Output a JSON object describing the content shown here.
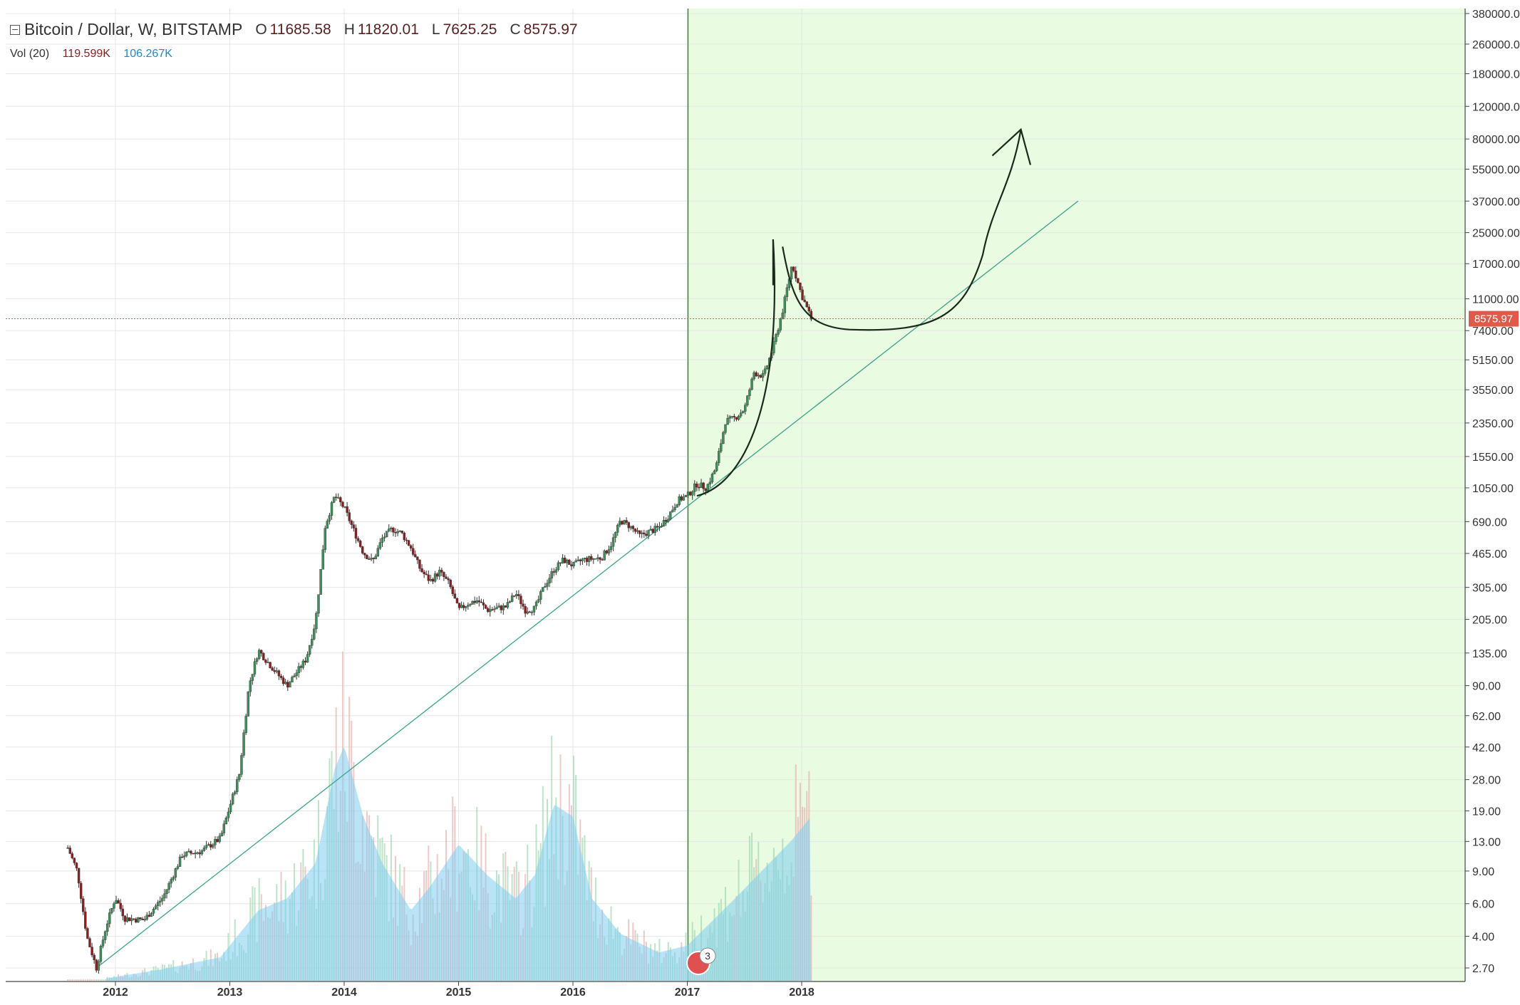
{
  "header": {
    "symbol": "Bitcoin / Dollar, W, BITSTAMP",
    "open_label": "O",
    "open_value": "11685.58",
    "high_label": "H",
    "high_value": "11820.01",
    "low_label": "L",
    "low_value": "7625.25",
    "close_label": "C",
    "close_value": "8575.97"
  },
  "volume_legend": {
    "title": "Vol (20)",
    "value": "119.599K",
    "ma_value": "106.267K"
  },
  "colors": {
    "up": "#3f8f5a",
    "down": "#8b1f1f",
    "highlight_bg": "#e9fbe1",
    "trendline": "#3aa38a",
    "volume_ma_fill": "#80ccf0",
    "price_line": "#e05a4a",
    "drawing": "#1a2a1a"
  },
  "chart_data": {
    "type": "candlestick",
    "title": "Bitcoin / Dollar, W, BITSTAMP",
    "y_scale": "log",
    "y_axis_ticks": [
      "380000.00",
      "260000.00",
      "180000.00",
      "120000.00",
      "80000.00",
      "55000.00",
      "37000.00",
      "25000.00",
      "17000.00",
      "11000.00",
      "7400.00",
      "5150.00",
      "3550.00",
      "2350.00",
      "1550.00",
      "1050.00",
      "690.00",
      "465.00",
      "305.00",
      "205.00",
      "135.00",
      "90.00",
      "62.00",
      "42.00",
      "28.00",
      "19.00",
      "13.00",
      "9.00",
      "6.00",
      "4.00",
      "2.70"
    ],
    "x_axis_ticks": [
      "2012",
      "2013",
      "2014",
      "2015",
      "2016",
      "2017",
      "2018"
    ],
    "last_price": 8575.97,
    "last_price_label": "8575.97",
    "highlight_range": {
      "from": "2017-01",
      "to": "end"
    },
    "event_badge": "3",
    "price_path": [
      [
        "2011-08",
        12
      ],
      [
        "2011-09",
        9
      ],
      [
        "2011-10",
        4
      ],
      [
        "2011-11",
        2.7
      ],
      [
        "2011-12",
        4.5
      ],
      [
        "2012-01",
        6.5
      ],
      [
        "2012-02",
        5
      ],
      [
        "2012-04",
        4.9
      ],
      [
        "2012-06",
        6.5
      ],
      [
        "2012-08",
        11
      ],
      [
        "2012-10",
        11.5
      ],
      [
        "2012-12",
        13.5
      ],
      [
        "2013-02",
        30
      ],
      [
        "2013-03",
        90
      ],
      [
        "2013-04",
        140
      ],
      [
        "2013-05",
        120
      ],
      [
        "2013-07",
        90
      ],
      [
        "2013-09",
        125
      ],
      [
        "2013-10",
        200
      ],
      [
        "2013-11",
        650
      ],
      [
        "2013-12",
        950
      ],
      [
        "2014-01",
        820
      ],
      [
        "2014-02",
        620
      ],
      [
        "2014-03",
        470
      ],
      [
        "2014-04",
        420
      ],
      [
        "2014-05",
        560
      ],
      [
        "2014-06",
        630
      ],
      [
        "2014-07",
        600
      ],
      [
        "2014-08",
        500
      ],
      [
        "2014-09",
        380
      ],
      [
        "2014-10",
        330
      ],
      [
        "2014-11",
        370
      ],
      [
        "2014-12",
        320
      ],
      [
        "2015-01",
        230
      ],
      [
        "2015-02",
        250
      ],
      [
        "2015-03",
        260
      ],
      [
        "2015-04",
        230
      ],
      [
        "2015-05",
        235
      ],
      [
        "2015-06",
        240
      ],
      [
        "2015-07",
        285
      ],
      [
        "2015-08",
        230
      ],
      [
        "2015-09",
        235
      ],
      [
        "2015-10",
        310
      ],
      [
        "2015-11",
        380
      ],
      [
        "2015-12",
        430
      ],
      [
        "2016-01",
        400
      ],
      [
        "2016-02",
        430
      ],
      [
        "2016-04",
        440
      ],
      [
        "2016-05",
        520
      ],
      [
        "2016-06",
        700
      ],
      [
        "2016-07",
        650
      ],
      [
        "2016-08",
        580
      ],
      [
        "2016-10",
        640
      ],
      [
        "2016-11",
        740
      ],
      [
        "2016-12",
        900
      ],
      [
        "2017-01",
        950
      ],
      [
        "2017-02",
        1100
      ],
      [
        "2017-03",
        1050
      ],
      [
        "2017-04",
        1350
      ],
      [
        "2017-05",
        2400
      ],
      [
        "2017-06",
        2500
      ],
      [
        "2017-07",
        2800
      ],
      [
        "2017-08",
        4400
      ],
      [
        "2017-09",
        4200
      ],
      [
        "2017-10",
        6000
      ],
      [
        "2017-11",
        9500
      ],
      [
        "2017-12",
        17000
      ],
      [
        "2018-01",
        11500
      ],
      [
        "2018-02",
        8575.97
      ]
    ],
    "volume_ma_path": [
      [
        "2011-12",
        0.01
      ],
      [
        "2012-06",
        0.05
      ],
      [
        "2012-12",
        0.1
      ],
      [
        "2013-04",
        0.3
      ],
      [
        "2013-07",
        0.35
      ],
      [
        "2013-10",
        0.5
      ],
      [
        "2013-12",
        0.9
      ],
      [
        "2014-01",
        1.0
      ],
      [
        "2014-03",
        0.7
      ],
      [
        "2014-05",
        0.5
      ],
      [
        "2014-08",
        0.3
      ],
      [
        "2014-10",
        0.4
      ],
      [
        "2015-01",
        0.58
      ],
      [
        "2015-04",
        0.45
      ],
      [
        "2015-07",
        0.35
      ],
      [
        "2015-09",
        0.45
      ],
      [
        "2015-11",
        0.75
      ],
      [
        "2016-01",
        0.7
      ],
      [
        "2016-03",
        0.35
      ],
      [
        "2016-06",
        0.2
      ],
      [
        "2016-10",
        0.12
      ],
      [
        "2017-01",
        0.15
      ],
      [
        "2017-06",
        0.35
      ],
      [
        "2017-12",
        0.6
      ],
      [
        "2018-02",
        0.7
      ]
    ]
  }
}
